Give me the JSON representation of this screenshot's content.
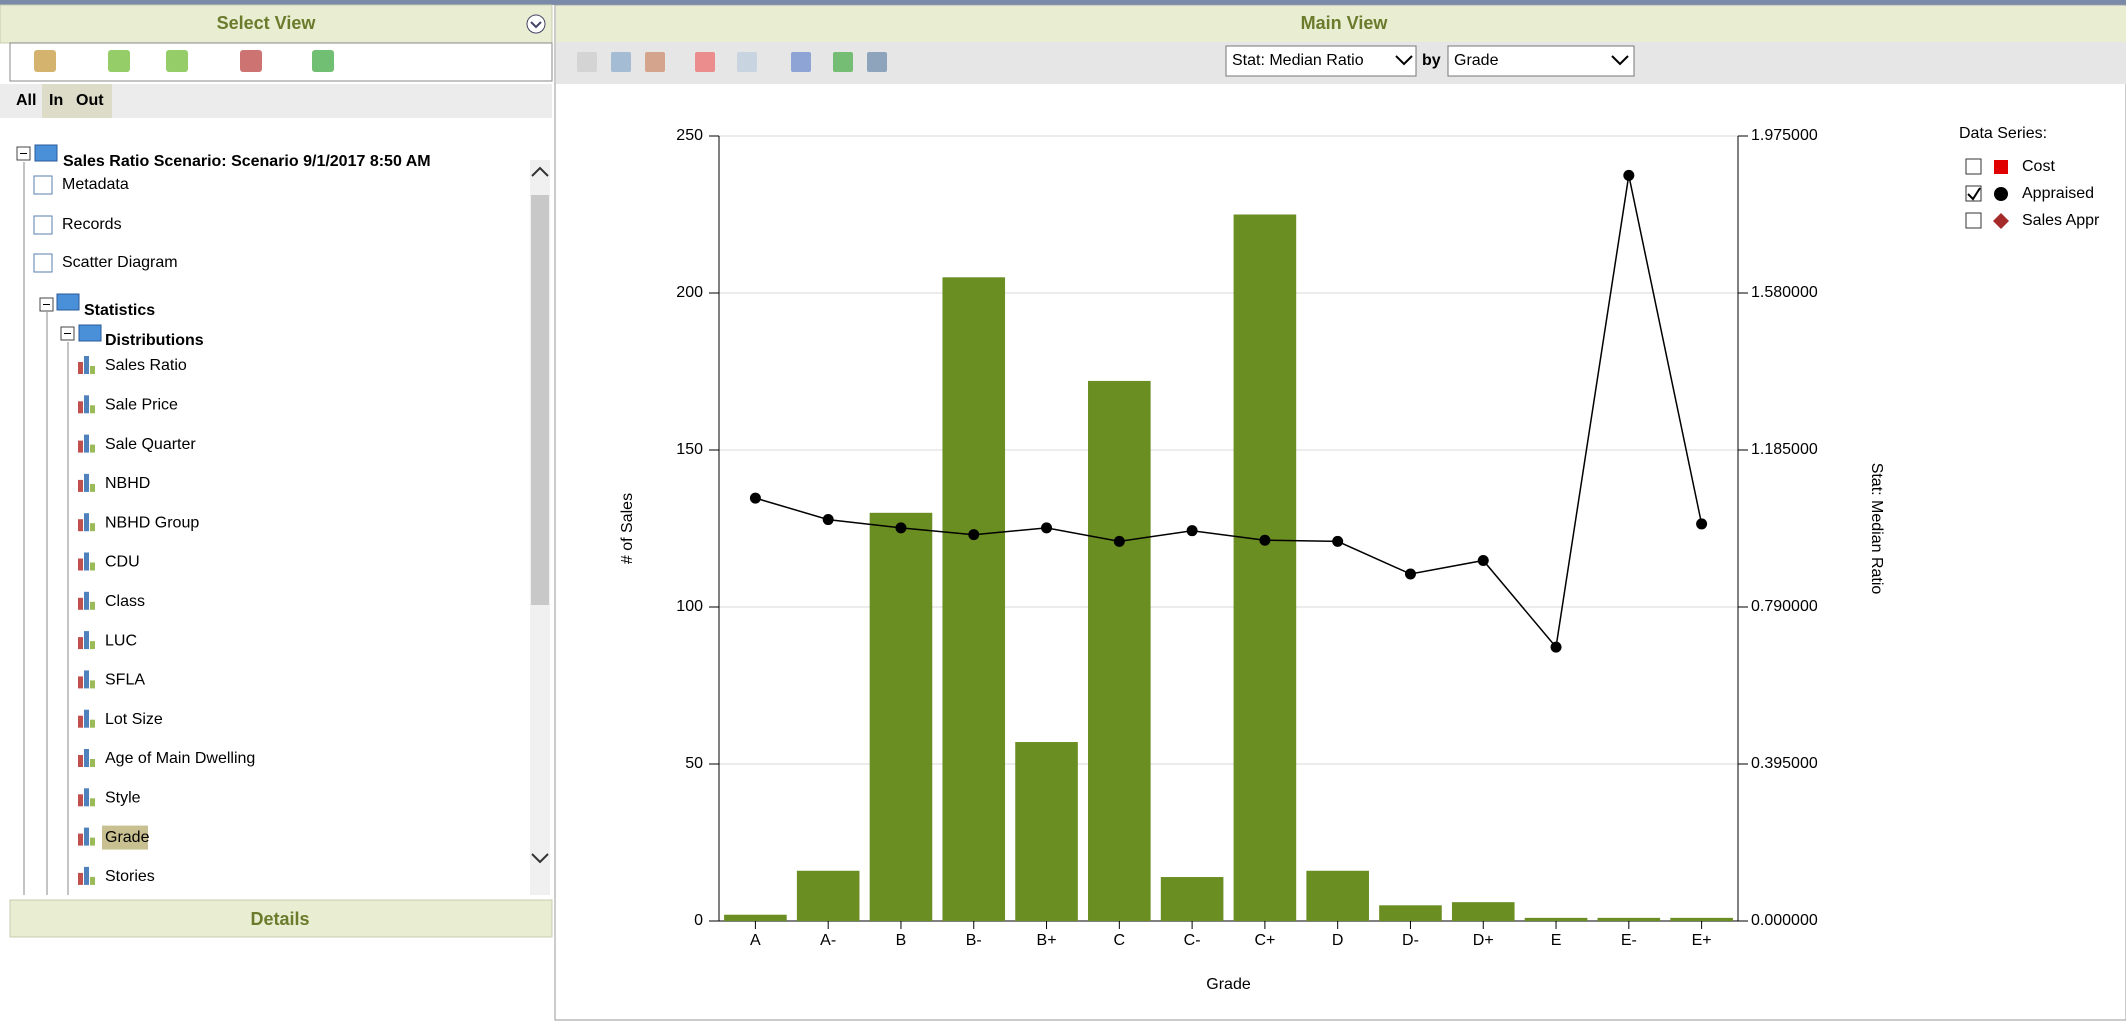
{
  "select_view": {
    "title": "Select View",
    "tabs": [
      "All",
      "In",
      "Out"
    ],
    "tree": {
      "root": "Sales Ratio Scenario: Scenario 9/1/2017 8:50 AM",
      "items": [
        "Metadata",
        "Records",
        "Scatter Diagram"
      ],
      "statistics": "Statistics",
      "distributions": "Distributions",
      "distribution_items": [
        "Sales Ratio",
        "Sale Price",
        "Sale Quarter",
        "NBHD",
        "NBHD Group",
        "CDU",
        "Class",
        "LUC",
        "SFLA",
        "Lot Size",
        "Age of Main Dwelling",
        "Style",
        "Grade",
        "Stories"
      ],
      "selected": 12
    }
  },
  "details": {
    "title": "Details"
  },
  "main_view": {
    "title": "Main View",
    "stat_select": "Stat: Median Ratio",
    "by": "by",
    "group_select": "Grade"
  },
  "chart_data": {
    "type": "bar_line",
    "x_label": "Grade",
    "y_label": "# of Sales",
    "y2_label": "Stat: Median Ratio",
    "categories": [
      "A",
      "A-",
      "B",
      "B-",
      "B+",
      "C",
      "C-",
      "C+",
      "D",
      "D-",
      "D+",
      "E",
      "E-",
      "E+"
    ],
    "ylim": [
      0,
      250
    ],
    "yticks": [
      0,
      50,
      100,
      150,
      200,
      250
    ],
    "y2lim": [
      0,
      1.975
    ],
    "y2ticks": [
      {
        "value": 0,
        "label": "0.000000"
      },
      {
        "value": 0.395,
        "label": "0.395000"
      },
      {
        "value": 0.79,
        "label": "0.790000"
      },
      {
        "value": 1.185,
        "label": "1.185000"
      },
      {
        "value": 1.58,
        "label": "1.580000"
      },
      {
        "value": 1.975,
        "label": "1.975000"
      }
    ],
    "grid": true,
    "series": [
      {
        "color": "#6b8e23",
        "values": [
          2,
          16,
          130,
          205,
          57,
          172,
          14,
          225,
          16,
          5,
          6,
          1,
          1,
          1
        ]
      },
      {
        "color": "#000000",
        "axis": "y2",
        "values": [
          1.064,
          1.01,
          0.989,
          0.972,
          0.989,
          0.955,
          0.982,
          0.958,
          0.955,
          0.873,
          0.907,
          0.689,
          1.876,
          0.999
        ]
      }
    ],
    "legend": {
      "title": "Data Series:",
      "items": [
        {
          "name": "Cost",
          "color": "#e00000",
          "marker": "square",
          "checked": false
        },
        {
          "name": "Appraised",
          "color": "#000000",
          "marker": "circle",
          "checked": true
        },
        {
          "name": "Sales Appr",
          "color": "#a52a2a",
          "marker": "diamond",
          "checked": false
        }
      ]
    }
  }
}
